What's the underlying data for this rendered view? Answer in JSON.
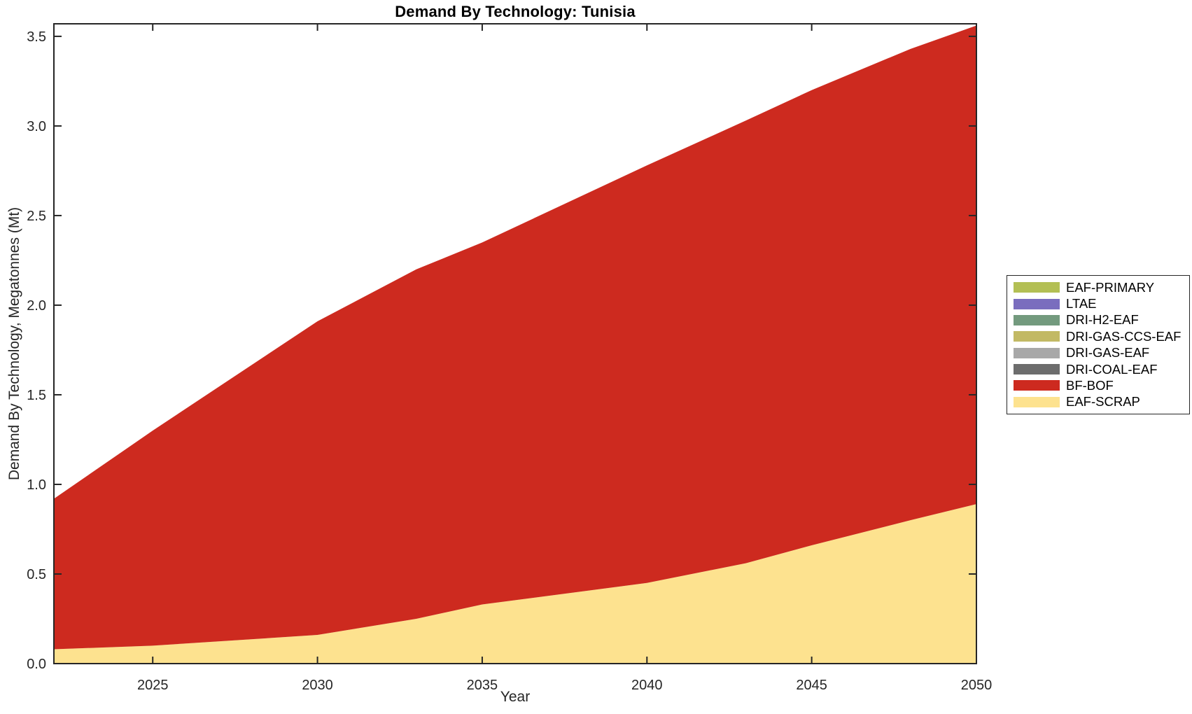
{
  "figure": {
    "title": "Demand By Technology: Tunisia",
    "xlabel": "Year",
    "ylabel": "Demand By Technology, Megatonnes (Mt)"
  },
  "axes": {
    "axis_color": "#262626",
    "text_color": "#262626",
    "x_tick_labels": [
      "2025",
      "2030",
      "2035",
      "2040",
      "2045",
      "2050"
    ],
    "y_tick_labels": [
      "0.0",
      "0.5",
      "1.0",
      "1.5",
      "2.0",
      "2.5",
      "3.0",
      "3.5"
    ]
  },
  "legend": {
    "items": [
      {
        "label": "EAF-PRIMARY",
        "color": "#b3bf54"
      },
      {
        "label": "LTAE",
        "color": "#7a6dbe"
      },
      {
        "label": "DRI-H2-EAF",
        "color": "#739a7e"
      },
      {
        "label": "DRI-GAS-CCS-EAF",
        "color": "#c2b964"
      },
      {
        "label": "DRI-GAS-EAF",
        "color": "#a8a8a8"
      },
      {
        "label": "DRI-COAL-EAF",
        "color": "#6d6d6d"
      },
      {
        "label": "BF-BOF",
        "color": "#cd2a1f"
      },
      {
        "label": "EAF-SCRAP",
        "color": "#fde28f"
      }
    ]
  },
  "chart_data": {
    "type": "area",
    "stacked": true,
    "title": "Demand By Technology: Tunisia",
    "xlabel": "Year",
    "ylabel": "Demand By Technology, Megatonnes (Mt)",
    "x": [
      2022,
      2025,
      2030,
      2033,
      2035,
      2040,
      2043,
      2045,
      2048,
      2050
    ],
    "series": [
      {
        "name": "EAF-PRIMARY",
        "color": "#b3bf54",
        "values": [
          0,
          0,
          0,
          0,
          0,
          0,
          0,
          0,
          0,
          0
        ]
      },
      {
        "name": "LTAE",
        "color": "#7a6dbe",
        "values": [
          0,
          0,
          0,
          0,
          0,
          0,
          0,
          0,
          0,
          0
        ]
      },
      {
        "name": "DRI-H2-EAF",
        "color": "#739a7e",
        "values": [
          0,
          0,
          0,
          0,
          0,
          0,
          0,
          0,
          0,
          0
        ]
      },
      {
        "name": "DRI-GAS-CCS-EAF",
        "color": "#c2b964",
        "values": [
          0,
          0,
          0,
          0,
          0,
          0,
          0,
          0,
          0,
          0
        ]
      },
      {
        "name": "DRI-GAS-EAF",
        "color": "#a8a8a8",
        "values": [
          0,
          0,
          0,
          0,
          0,
          0,
          0,
          0,
          0,
          0
        ]
      },
      {
        "name": "DRI-COAL-EAF",
        "color": "#6d6d6d",
        "values": [
          0,
          0,
          0,
          0,
          0,
          0,
          0,
          0,
          0,
          0
        ]
      },
      {
        "name": "BF-BOF",
        "color": "#cd2a1f",
        "values": [
          0.84,
          1.2,
          1.75,
          1.95,
          2.02,
          2.33,
          2.47,
          2.54,
          2.63,
          2.67
        ]
      },
      {
        "name": "EAF-SCRAP",
        "color": "#fde28f",
        "values": [
          0.08,
          0.1,
          0.16,
          0.25,
          0.33,
          0.45,
          0.56,
          0.66,
          0.8,
          0.89
        ]
      }
    ],
    "stack_note": "series are listed in legend order (top to bottom); stacking on the plot is bottom-up in reverse order, i.e. EAF-SCRAP at the bottom, BF-BOF above it; all other technologies are zero",
    "totals_at_x_ticks": {
      "2025": 1.3,
      "2030": 1.91,
      "2035": 2.35,
      "2040": 2.78,
      "2045": 3.2,
      "2050": 3.56
    },
    "xlim": [
      2022,
      2050
    ],
    "ylim": [
      0,
      3.57
    ],
    "x_ticks": [
      2025,
      2030,
      2035,
      2040,
      2045,
      2050
    ],
    "y_ticks": [
      0.0,
      0.5,
      1.0,
      1.5,
      2.0,
      2.5,
      3.0,
      3.5
    ],
    "grid": false,
    "legend_position": "right-outside"
  }
}
